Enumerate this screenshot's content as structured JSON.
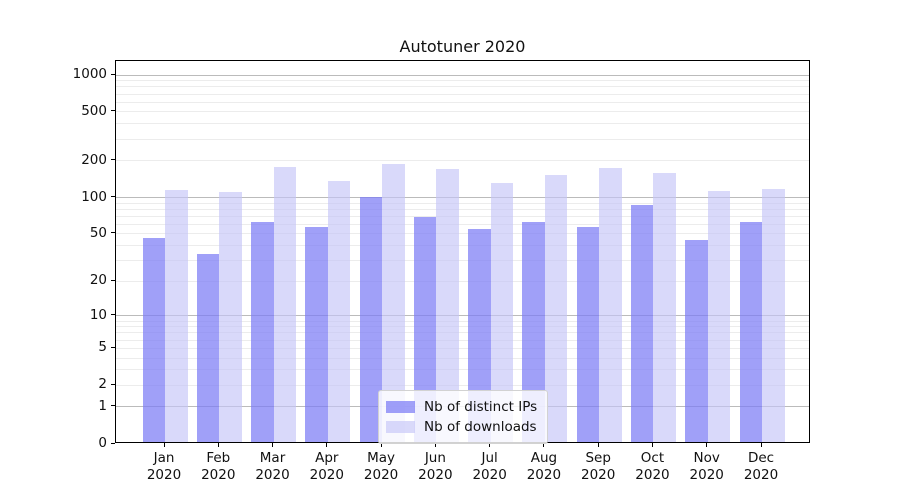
{
  "title": "Autotuner 2020",
  "chart_data": {
    "type": "bar",
    "title": "Autotuner 2020",
    "categories": [
      "Jan",
      "Feb",
      "Mar",
      "Apr",
      "May",
      "Jun",
      "Jul",
      "Aug",
      "Sep",
      "Oct",
      "Nov",
      "Dec"
    ],
    "category_year": "2020",
    "series": [
      {
        "name": "Nb of distinct IPs",
        "color": "rgba(123,123,245,0.72)",
        "values": [
          45,
          33,
          61,
          55,
          97,
          66,
          53,
          61,
          55,
          83,
          43,
          61
        ]
      },
      {
        "name": "Nb of downloads",
        "color": "rgba(196,196,248,0.65)",
        "values": [
          110,
          106,
          170,
          132,
          182,
          165,
          127,
          146,
          167,
          152,
          108,
          113
        ]
      }
    ],
    "xlabel": "",
    "ylabel": "",
    "y_scale": "symlog-log1p",
    "y_ticks": [
      0,
      1,
      2,
      5,
      10,
      20,
      50,
      100,
      200,
      500,
      1000
    ],
    "ylim": [
      0,
      1300
    ],
    "grid": true,
    "grid_major_color": "#bbbbbb",
    "grid_minor_color": "#ececec",
    "spine_color": "#000000",
    "legend_position": "lower center",
    "legend_entries": [
      "Nb of distinct IPs",
      "Nb of downloads"
    ]
  }
}
